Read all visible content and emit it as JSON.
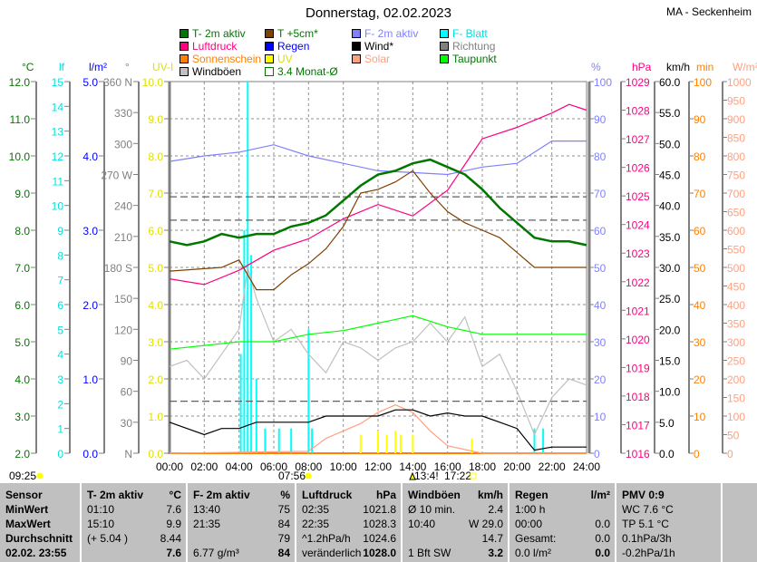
{
  "header": {
    "title": "Donnerstag, 02.02.2023",
    "station": "MA - Seckenheim"
  },
  "legend": [
    {
      "label": "T- 2m aktiv",
      "color": "#007800",
      "text_color": "#007800"
    },
    {
      "label": "T +5cm*",
      "color": "#804000",
      "text_color": "#007800"
    },
    {
      "label": "F- 2m aktiv",
      "color": "#8080ff",
      "text_color": "#8080ff"
    },
    {
      "label": "F- Blatt",
      "color": "#00ffff",
      "text_color": "#00e0e0"
    },
    {
      "label": "Luftdruck",
      "color": "#ff0080",
      "text_color": "#ff0080"
    },
    {
      "label": "Regen",
      "color": "#0000ff",
      "text_color": "#0000ff"
    },
    {
      "label": "Wind*",
      "color": "#000000",
      "text_color": "#000000"
    },
    {
      "label": "Richtung",
      "color": "#808080",
      "text_color": "#808080"
    },
    {
      "label": "Sonnenschein",
      "color": "#ff8000",
      "text_color": "#ff8000"
    },
    {
      "label": "UV",
      "color": "#ffff00",
      "text_color": "#e0e000"
    },
    {
      "label": "Solar",
      "color": "#ffa080",
      "text_color": "#ffa080"
    },
    {
      "label": "Taupunkt",
      "color": "#00ff00",
      "text_color": "#007800"
    },
    {
      "label": "Windböen",
      "color": "#c0c0c0",
      "text_color": "#000000"
    },
    {
      "label": "3.4 Monat-Ø",
      "color": "#ffffff",
      "text_color": "#007800"
    }
  ],
  "chart_data": {
    "type": "line",
    "x_labels": [
      "00:00",
      "02:00",
      "04:00",
      "06:00",
      "08:00",
      "10:00",
      "12:00",
      "14:00",
      "16:00",
      "18:00",
      "20:00",
      "22:00",
      "24:00"
    ],
    "xlim": [
      0,
      24
    ],
    "axes": {
      "degC": {
        "unit": "°C",
        "color": "#007800",
        "min": 2,
        "max": 12,
        "labels": [
          "2.0",
          "3.0",
          "4.0",
          "5.0",
          "6.0",
          "7.0",
          "8.0",
          "9.0",
          "10.0",
          "11.0",
          "12.0"
        ]
      },
      "lf": {
        "unit": "lf",
        "color": "#00e0e0",
        "min": 0,
        "max": 15,
        "labels": [
          "0",
          "1",
          "2",
          "3",
          "4",
          "5",
          "6",
          "7",
          "8",
          "9",
          "10",
          "11",
          "12",
          "13",
          "14",
          "15"
        ]
      },
      "lm2": {
        "unit": "l/m²",
        "color": "#0000ff",
        "min": 0,
        "max": 5,
        "labels": [
          "0.0",
          "1.0",
          "2.0",
          "3.0",
          "4.0",
          "5.0"
        ]
      },
      "deg": {
        "unit": "°",
        "color": "#808080",
        "min": 0,
        "max": 360,
        "labels": [
          "N",
          "30",
          "60",
          "90",
          "120",
          "150",
          "180 S",
          "210",
          "240",
          "270 W",
          "300",
          "330",
          "360 N"
        ]
      },
      "uv": {
        "unit": "UV-I",
        "color": "#e0e000",
        "min": 0,
        "max": 10,
        "labels": [
          "0.0",
          "1.0",
          "2.0",
          "3.0",
          "4.0",
          "5.0",
          "6.0",
          "7.0",
          "8.0",
          "9.0",
          "10.0"
        ]
      },
      "pct": {
        "unit": "%",
        "color": "#8080ff",
        "min": 0,
        "max": 100,
        "labels": [
          "0",
          "10",
          "20",
          "30",
          "40",
          "50",
          "60",
          "70",
          "80",
          "90",
          "100"
        ]
      },
      "hpa": {
        "unit": "hPa",
        "color": "#ff0080",
        "min": 1016,
        "max": 1029,
        "labels": [
          "1016",
          "1017",
          "1018",
          "1019",
          "1020",
          "1021",
          "1022",
          "1023",
          "1024",
          "1025",
          "1026",
          "1027",
          "1028",
          "1029"
        ]
      },
      "kmh": {
        "unit": "km/h",
        "color": "#000000",
        "min": 0,
        "max": 60,
        "labels": [
          "0.0",
          "5.0",
          "10.0",
          "15.0",
          "20.0",
          "25.0",
          "30.0",
          "35.0",
          "40.0",
          "45.0",
          "50.0",
          "55.0",
          "60.0"
        ]
      },
      "min": {
        "unit": "min",
        "color": "#ff8000",
        "min": 0,
        "max": 100,
        "labels": [
          "0",
          "10",
          "20",
          "30",
          "40",
          "50",
          "60",
          "70",
          "80",
          "90",
          "100"
        ]
      },
      "wm2": {
        "unit": "W/m²",
        "color": "#ffa080",
        "min": 0,
        "max": 1000,
        "labels": [
          "0",
          "50",
          "100",
          "150",
          "200",
          "250",
          "300",
          "350",
          "400",
          "450",
          "500",
          "550",
          "600",
          "650",
          "700",
          "750",
          "800",
          "850",
          "900",
          "950",
          "1000"
        ]
      }
    },
    "series": [
      {
        "name": "Windböen",
        "axis": "kmh",
        "color": "#c0c0c0",
        "x": [
          0,
          1,
          2,
          3,
          4,
          4.5,
          5,
          6,
          7,
          8,
          9,
          10,
          11,
          12,
          13,
          14,
          15,
          16,
          17,
          18,
          19,
          20,
          21,
          22,
          23,
          24
        ],
        "y": [
          14,
          15,
          12,
          16,
          20,
          30,
          25,
          18,
          20,
          16,
          13,
          18,
          17,
          15,
          17,
          18,
          21,
          18,
          22,
          14,
          16,
          10,
          3,
          9,
          12,
          11
        ]
      },
      {
        "name": "3.4 Monat-Ø T",
        "axis": "degC",
        "color": "#606060",
        "dash": true,
        "x": [
          0,
          24
        ],
        "y": [
          8.9,
          8.9
        ]
      },
      {
        "name": "3.4 Monat-Ø T2",
        "axis": "degC",
        "color": "#606060",
        "dash": true,
        "x": [
          0,
          24
        ],
        "y": [
          8.27,
          8.27
        ]
      },
      {
        "name": "3.4 Monat-Ø Wind",
        "axis": "kmh",
        "color": "#606060",
        "dash": true,
        "x": [
          0,
          24
        ],
        "y": [
          8.4,
          8.4
        ]
      },
      {
        "name": "Solar",
        "axis": "wm2",
        "color": "#ffa080",
        "x": [
          0,
          8,
          9,
          10,
          11,
          12,
          13,
          14,
          15,
          16,
          17,
          18,
          24
        ],
        "y": [
          0,
          5,
          40,
          60,
          80,
          110,
          130,
          110,
          60,
          20,
          10,
          0,
          0
        ]
      },
      {
        "name": "Wind*",
        "axis": "kmh",
        "color": "#000000",
        "x": [
          0,
          1,
          2,
          3,
          4,
          5,
          6,
          7,
          8,
          9,
          10,
          11,
          12,
          13,
          14,
          15,
          16,
          17,
          18,
          19,
          20,
          21,
          22,
          23,
          24
        ],
        "y": [
          5,
          4,
          3,
          4,
          4,
          5,
          5,
          5,
          5,
          6,
          6,
          6,
          6,
          7,
          7,
          6,
          6.5,
          6,
          6,
          5,
          4,
          0.5,
          1,
          1,
          1
        ]
      },
      {
        "name": "Taupunkt",
        "axis": "degC",
        "color": "#00ff00",
        "x": [
          0,
          2,
          4,
          6,
          8,
          10,
          12,
          13,
          14,
          16,
          18,
          20,
          22,
          24
        ],
        "y": [
          4.8,
          4.9,
          5.0,
          5.0,
          5.2,
          5.3,
          5.5,
          5.6,
          5.7,
          5.4,
          5.2,
          5.2,
          5.2,
          5.2
        ]
      },
      {
        "name": "F- 2m aktiv",
        "axis": "pct",
        "color": "#8080ff",
        "x": [
          0,
          2,
          4,
          6,
          8,
          10,
          12,
          14,
          16,
          18,
          20,
          22,
          24
        ],
        "y": [
          78.5,
          80,
          81,
          83,
          80,
          78,
          76,
          75.5,
          75,
          77,
          78,
          84,
          84
        ]
      },
      {
        "name": "Luftdruck",
        "axis": "hpa",
        "color": "#ff0080",
        "x": [
          0,
          2,
          4,
          6,
          8,
          10,
          12,
          14,
          16,
          18,
          20,
          22,
          23,
          24
        ],
        "y": [
          1022.1,
          1021.9,
          1022.4,
          1023.1,
          1023.5,
          1024.2,
          1024.7,
          1024.3,
          1025.2,
          1027,
          1027.4,
          1027.9,
          1028.2,
          1028
        ]
      },
      {
        "name": "T +5cm*",
        "axis": "degC",
        "color": "#804000",
        "x": [
          0,
          3,
          4,
          5,
          6,
          7,
          8,
          9,
          10,
          11,
          12,
          13,
          14,
          15,
          16,
          17,
          18,
          19,
          20,
          21,
          22,
          24
        ],
        "y": [
          6.9,
          7.0,
          7.2,
          6.4,
          6.4,
          6.8,
          7.1,
          7.5,
          8.1,
          9.0,
          9.1,
          9.3,
          9.6,
          9.0,
          8.5,
          8.2,
          8.0,
          7.8,
          7.4,
          7.0,
          7.0,
          7.0
        ]
      },
      {
        "name": "T- 2m aktiv",
        "axis": "degC",
        "color": "#007800",
        "bold": true,
        "x": [
          0,
          1,
          2,
          3,
          4,
          5,
          6,
          7,
          8,
          9,
          10,
          11,
          12,
          13,
          14,
          15,
          16,
          17,
          18,
          19,
          20,
          21,
          22,
          23,
          24
        ],
        "y": [
          7.7,
          7.6,
          7.7,
          7.9,
          7.8,
          7.9,
          7.9,
          8.1,
          8.2,
          8.4,
          8.8,
          9.2,
          9.5,
          9.6,
          9.8,
          9.9,
          9.7,
          9.5,
          9.1,
          8.6,
          8.2,
          7.8,
          7.7,
          7.7,
          7.6
        ]
      }
    ],
    "bars": [
      {
        "name": "F- Blatt",
        "axis": "lf",
        "color": "#00ffff",
        "x": [
          4.1,
          4.3,
          4.5,
          4.7,
          5.0,
          5.5,
          6.3,
          7.0,
          8.0,
          8.2,
          21.0,
          21.5
        ],
        "y": [
          4,
          9,
          15,
          8,
          3,
          1,
          1,
          1,
          5,
          1,
          1,
          1
        ]
      },
      {
        "name": "UV",
        "axis": "uv",
        "color": "#ffff00",
        "x": [
          11.0,
          12.0,
          12.5,
          13.0,
          13.3,
          14.0,
          17.4
        ],
        "y": [
          0.5,
          0.6,
          0.5,
          0.6,
          0.5,
          0.5,
          0.4
        ]
      }
    ],
    "footer": {
      "sunshine": "09:25",
      "sunrise": "07:56",
      "uv_max": "13:4!",
      "sunset": "17:22"
    }
  },
  "table": {
    "columns": [
      {
        "rows": [
          [
            "Sensor",
            ""
          ],
          [
            "MinWert",
            ""
          ],
          [
            "MaxWert",
            ""
          ],
          [
            "Durchschnitt",
            ""
          ],
          [
            "02.02. 23:55",
            ""
          ]
        ],
        "bold_all": true
      },
      {
        "rows": [
          [
            "T- 2m aktiv",
            "°C"
          ],
          [
            "01:10",
            "7.6"
          ],
          [
            "15:10",
            "9.9"
          ],
          [
            "(+ 5.04 )",
            "8.44"
          ],
          [
            "",
            "7.6"
          ]
        ]
      },
      {
        "rows": [
          [
            "F- 2m aktiv",
            "%"
          ],
          [
            "13:40",
            "75"
          ],
          [
            "21:35",
            "84"
          ],
          [
            "",
            "79"
          ],
          [
            "6.77 g/m³",
            "84"
          ]
        ]
      },
      {
        "rows": [
          [
            "Luftdruck",
            "hPa"
          ],
          [
            "02:35",
            "1021.8"
          ],
          [
            "22:35",
            "1028.3"
          ],
          [
            "^1.2hPa/h",
            "1024.6"
          ],
          [
            "veränderlich",
            "1028.0"
          ]
        ]
      },
      {
        "rows": [
          [
            "Windböen",
            "km/h"
          ],
          [
            "Ø 10 min.",
            "2.4"
          ],
          [
            "10:40",
            "W 29.0"
          ],
          [
            "",
            "14.7"
          ],
          [
            "1 Bft SW",
            "3.2"
          ]
        ]
      },
      {
        "rows": [
          [
            "Regen",
            "l/m²"
          ],
          [
            "1:00 h",
            ""
          ],
          [
            "00:00",
            "0.0"
          ],
          [
            "Gesamt:",
            "0.0"
          ],
          [
            "0.0 l/m²",
            "0.0"
          ]
        ]
      },
      {
        "rows": [
          [
            "PMV 0:9",
            ""
          ],
          [
            "WC 7.6 °C",
            ""
          ],
          [
            "TP 5.1 °C",
            ""
          ],
          [
            "0.1hPa/3h",
            ""
          ],
          [
            "-0.2hPa/1h",
            ""
          ]
        ]
      },
      {
        "rows": [
          [
            "",
            ""
          ],
          [
            "",
            ""
          ],
          [
            "",
            ""
          ],
          [
            "",
            ""
          ],
          [
            "",
            ""
          ]
        ]
      }
    ]
  }
}
